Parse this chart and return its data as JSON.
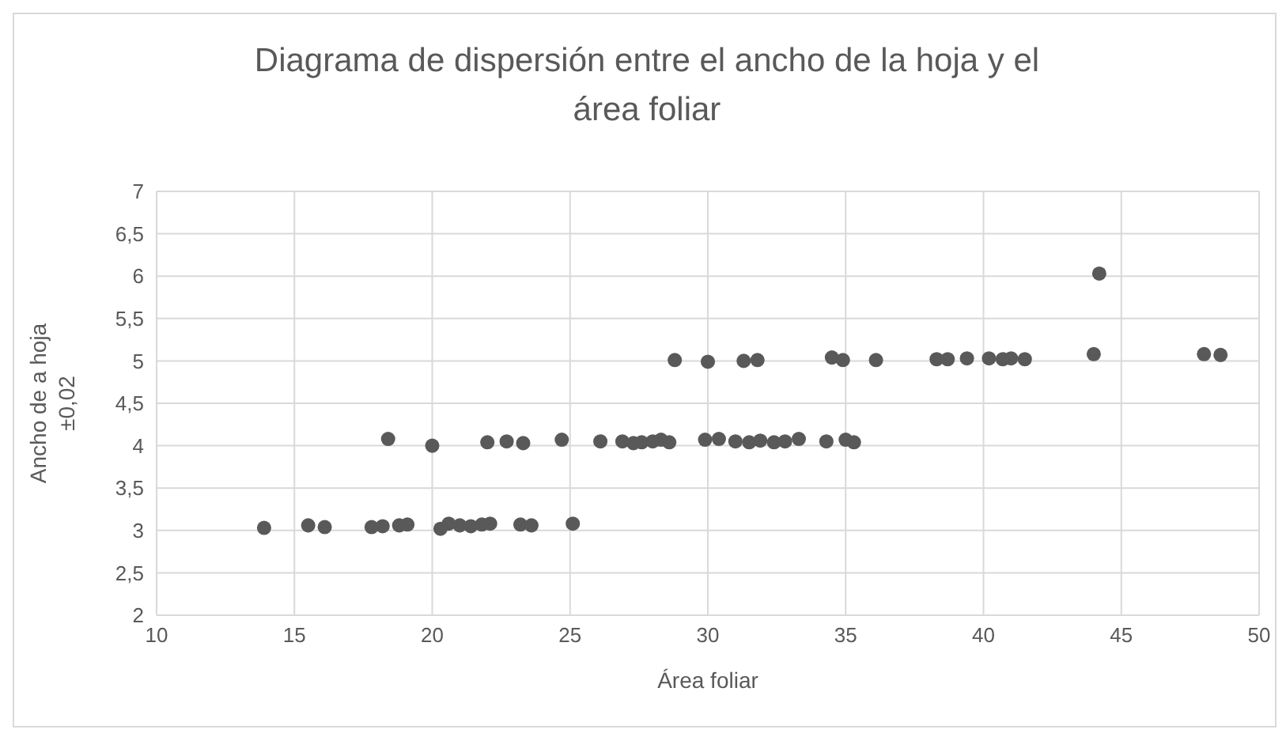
{
  "chart_data": {
    "type": "scatter",
    "title": "Diagrama de dispersión entre el ancho de la hoja y el área foliar",
    "xlabel": "Área foliar",
    "ylabel": "Ancho de a hoja ±0,02",
    "color": "#595959",
    "marker": "circle",
    "grid": true,
    "x": [
      13.9,
      15.5,
      16.1,
      17.8,
      18.2,
      18.8,
      19.1,
      20.3,
      20.6,
      21.0,
      21.4,
      21.8,
      22.1,
      23.2,
      23.6,
      25.1,
      18.4,
      20.0,
      22.0,
      22.7,
      23.3,
      24.7,
      26.1,
      26.9,
      27.3,
      27.6,
      28.0,
      28.3,
      28.6,
      29.9,
      30.4,
      31.0,
      31.5,
      31.9,
      32.4,
      32.8,
      33.3,
      34.3,
      35.0,
      35.3,
      28.8,
      30.0,
      31.3,
      31.8,
      34.5,
      34.9,
      36.1,
      38.3,
      38.7,
      39.4,
      40.2,
      40.7,
      41.0,
      41.3,
      41.5,
      44.0,
      48.0,
      48.6,
      44.2
    ],
    "values": [
      3.03,
      3.06,
      3.04,
      3.04,
      3.05,
      3.06,
      3.07,
      3.02,
      3.08,
      3.06,
      3.05,
      3.07,
      3.08,
      3.07,
      3.06,
      3.08,
      4.08,
      4.0,
      4.04,
      4.05,
      4.03,
      4.07,
      4.05,
      4.05,
      4.03,
      4.04,
      4.05,
      4.07,
      4.04,
      4.07,
      4.08,
      4.05,
      4.04,
      4.06,
      4.04,
      4.05,
      4.08,
      4.05,
      4.07,
      4.04,
      5.01,
      4.99,
      5.0,
      5.01,
      5.04,
      5.01,
      5.01,
      5.02,
      5.02,
      5.03,
      5.03,
      5.02,
      5.03,
      null,
      5.02,
      5.08,
      5.08,
      5.07,
      6.03
    ],
    "xlim": [
      10,
      50
    ],
    "xticks": [
      10,
      15,
      20,
      25,
      30,
      35,
      40,
      45,
      50
    ],
    "ylim": [
      2,
      7
    ],
    "yticks": [
      2,
      {
        "value": 2.5,
        "label": "2,5"
      },
      3,
      {
        "value": 3.5,
        "label": "3,5"
      },
      4,
      {
        "value": 4.5,
        "label": "4,5"
      },
      5,
      {
        "value": 5.5,
        "label": "5,5"
      },
      6,
      {
        "value": 6.5,
        "label": "6,5"
      },
      7
    ]
  }
}
